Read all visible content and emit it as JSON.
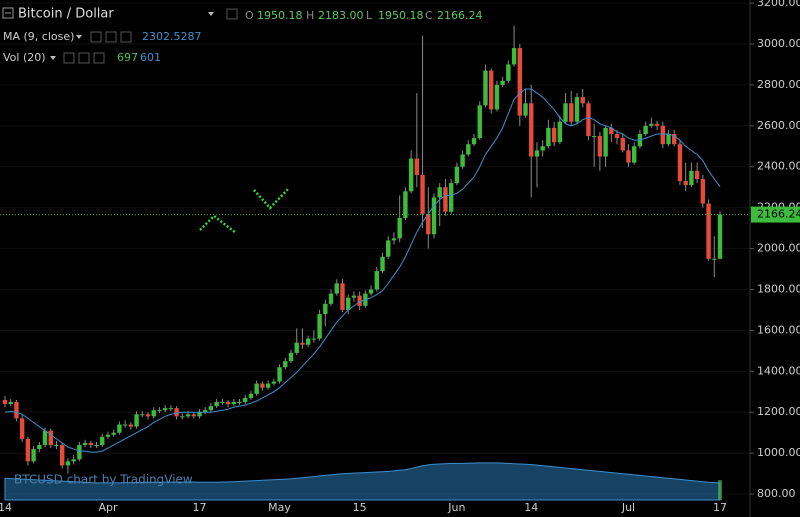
{
  "chart_data": {
    "type": "candlestick",
    "symbol": "Bitcoin / Dollar",
    "watermark": "BTCUSD chart by TradingView",
    "last_candle": {
      "keys": [
        "O",
        "H",
        "L",
        "C"
      ],
      "values": [
        1950.18,
        2183,
        1950.18,
        2166.24
      ],
      "value_labels": [
        "1950.18",
        "2183.00",
        "1950.18",
        "2166.24"
      ]
    },
    "up_color": "#3dbb3d",
    "down_color": "#e84a3a",
    "categories": [
      "14",
      null,
      null,
      null,
      null,
      null,
      null,
      null,
      null,
      null,
      null,
      null,
      null,
      null,
      null,
      null,
      null,
      null,
      "Apr",
      null,
      null,
      null,
      null,
      null,
      null,
      null,
      null,
      null,
      null,
      null,
      null,
      null,
      null,
      null,
      "17",
      null,
      null,
      null,
      null,
      null,
      null,
      null,
      null,
      null,
      null,
      null,
      null,
      null,
      "May",
      null,
      null,
      null,
      null,
      null,
      null,
      null,
      null,
      null,
      null,
      null,
      null,
      null,
      "15",
      null,
      null,
      null,
      null,
      null,
      null,
      null,
      null,
      null,
      null,
      null,
      null,
      null,
      null,
      null,
      null,
      "Jun",
      null,
      null,
      null,
      null,
      null,
      null,
      null,
      null,
      null,
      null,
      null,
      null,
      "14",
      null,
      null,
      null,
      null,
      null,
      null,
      null,
      null,
      null,
      null,
      null,
      null,
      null,
      null,
      null,
      null,
      "Jul",
      null,
      null,
      null,
      null,
      null,
      null,
      null,
      null,
      null,
      null,
      null,
      null,
      null,
      null,
      null,
      "17"
    ],
    "ohlc": [
      [
        1260,
        1280,
        1225,
        1240
      ],
      [
        1240,
        1265,
        1230,
        1250
      ],
      [
        1250,
        1260,
        1155,
        1170
      ],
      [
        1170,
        1185,
        1055,
        1070
      ],
      [
        1070,
        1080,
        940,
        960
      ],
      [
        960,
        1035,
        950,
        1020
      ],
      [
        1020,
        1055,
        1005,
        1040
      ],
      [
        1040,
        1125,
        1030,
        1110
      ],
      [
        1110,
        1120,
        1025,
        1040
      ],
      [
        1040,
        1060,
        1020,
        1040
      ],
      [
        1040,
        1050,
        925,
        940
      ],
      [
        940,
        975,
        900,
        960
      ],
      [
        960,
        990,
        945,
        970
      ],
      [
        970,
        1055,
        960,
        1040
      ],
      [
        1040,
        1065,
        1030,
        1050
      ],
      [
        1050,
        1060,
        1025,
        1040
      ],
      [
        1040,
        1055,
        1025,
        1040
      ],
      [
        1040,
        1095,
        1030,
        1080
      ],
      [
        1080,
        1105,
        1070,
        1090
      ],
      [
        1090,
        1115,
        1080,
        1100
      ],
      [
        1100,
        1155,
        1090,
        1140
      ],
      [
        1140,
        1160,
        1125,
        1140
      ],
      [
        1140,
        1150,
        1115,
        1130
      ],
      [
        1130,
        1205,
        1120,
        1190
      ],
      [
        1190,
        1205,
        1175,
        1190
      ],
      [
        1190,
        1200,
        1165,
        1180
      ],
      [
        1180,
        1225,
        1170,
        1210
      ],
      [
        1210,
        1225,
        1195,
        1210
      ],
      [
        1210,
        1235,
        1200,
        1220
      ],
      [
        1220,
        1235,
        1205,
        1220
      ],
      [
        1220,
        1230,
        1165,
        1180
      ],
      [
        1180,
        1195,
        1165,
        1180
      ],
      [
        1180,
        1205,
        1170,
        1190
      ],
      [
        1190,
        1200,
        1170,
        1180
      ],
      [
        1180,
        1215,
        1170,
        1200
      ],
      [
        1200,
        1225,
        1190,
        1210
      ],
      [
        1210,
        1245,
        1200,
        1230
      ],
      [
        1230,
        1265,
        1220,
        1250
      ],
      [
        1250,
        1265,
        1235,
        1250
      ],
      [
        1250,
        1260,
        1225,
        1240
      ],
      [
        1240,
        1265,
        1230,
        1250
      ],
      [
        1250,
        1265,
        1235,
        1250
      ],
      [
        1250,
        1285,
        1240,
        1270
      ],
      [
        1270,
        1305,
        1260,
        1290
      ],
      [
        1290,
        1355,
        1280,
        1340
      ],
      [
        1340,
        1350,
        1305,
        1320
      ],
      [
        1320,
        1355,
        1310,
        1340
      ],
      [
        1340,
        1365,
        1330,
        1350
      ],
      [
        1350,
        1435,
        1340,
        1420
      ],
      [
        1420,
        1465,
        1410,
        1450
      ],
      [
        1450,
        1505,
        1440,
        1490
      ],
      [
        1490,
        1610,
        1480,
        1540
      ],
      [
        1540,
        1610,
        1510,
        1530
      ],
      [
        1530,
        1575,
        1520,
        1560
      ],
      [
        1560,
        1600,
        1540,
        1560
      ],
      [
        1560,
        1700,
        1550,
        1680
      ],
      [
        1680,
        1750,
        1620,
        1730
      ],
      [
        1730,
        1800,
        1720,
        1780
      ],
      [
        1780,
        1850,
        1770,
        1830
      ],
      [
        1830,
        1850,
        1690,
        1700
      ],
      [
        1700,
        1775,
        1680,
        1760
      ],
      [
        1760,
        1790,
        1740,
        1770
      ],
      [
        1770,
        1790,
        1700,
        1720
      ],
      [
        1720,
        1795,
        1710,
        1780
      ],
      [
        1780,
        1820,
        1770,
        1800
      ],
      [
        1800,
        1910,
        1790,
        1890
      ],
      [
        1890,
        1980,
        1880,
        1960
      ],
      [
        1960,
        2060,
        1950,
        2040
      ],
      [
        2040,
        2080,
        2020,
        2050
      ],
      [
        2050,
        2260,
        2030,
        2150
      ],
      [
        2150,
        2300,
        2140,
        2280
      ],
      [
        2280,
        2480,
        2270,
        2440
      ],
      [
        2440,
        2760,
        2300,
        2360
      ],
      [
        2360,
        3040,
        2100,
        2170
      ],
      [
        2170,
        2300,
        2000,
        2070
      ],
      [
        2070,
        2270,
        2050,
        2250
      ],
      [
        2250,
        2320,
        2110,
        2300
      ],
      [
        2300,
        2340,
        2160,
        2180
      ],
      [
        2180,
        2340,
        2170,
        2320
      ],
      [
        2320,
        2420,
        2310,
        2400
      ],
      [
        2400,
        2480,
        2390,
        2460
      ],
      [
        2460,
        2530,
        2450,
        2510
      ],
      [
        2510,
        2560,
        2500,
        2540
      ],
      [
        2540,
        2720,
        2530,
        2700
      ],
      [
        2700,
        2900,
        2690,
        2870
      ],
      [
        2870,
        2880,
        2660,
        2680
      ],
      [
        2680,
        2820,
        2670,
        2800
      ],
      [
        2800,
        2840,
        2790,
        2820
      ],
      [
        2820,
        2920,
        2810,
        2900
      ],
      [
        2900,
        3090,
        2890,
        2980
      ],
      [
        2980,
        3000,
        2600,
        2650
      ],
      [
        2650,
        2780,
        2640,
        2710
      ],
      [
        2710,
        2800,
        2250,
        2450
      ],
      [
        2450,
        2520,
        2300,
        2480
      ],
      [
        2480,
        2530,
        2450,
        2500
      ],
      [
        2500,
        2630,
        2490,
        2590
      ],
      [
        2590,
        2620,
        2500,
        2520
      ],
      [
        2520,
        2650,
        2510,
        2620
      ],
      [
        2620,
        2760,
        2610,
        2710
      ],
      [
        2710,
        2770,
        2600,
        2620
      ],
      [
        2620,
        2760,
        2610,
        2740
      ],
      [
        2740,
        2780,
        2690,
        2710
      ],
      [
        2710,
        2720,
        2530,
        2550
      ],
      [
        2550,
        2610,
        2400,
        2550
      ],
      [
        2550,
        2570,
        2380,
        2450
      ],
      [
        2450,
        2600,
        2400,
        2590
      ],
      [
        2590,
        2610,
        2520,
        2560
      ],
      [
        2560,
        2580,
        2510,
        2540
      ],
      [
        2540,
        2560,
        2470,
        2480
      ],
      [
        2480,
        2510,
        2400,
        2420
      ],
      [
        2420,
        2520,
        2410,
        2500
      ],
      [
        2500,
        2580,
        2490,
        2560
      ],
      [
        2560,
        2620,
        2550,
        2600
      ],
      [
        2600,
        2640,
        2590,
        2610
      ],
      [
        2610,
        2625,
        2580,
        2600
      ],
      [
        2600,
        2620,
        2490,
        2510
      ],
      [
        2510,
        2580,
        2500,
        2560
      ],
      [
        2560,
        2580,
        2500,
        2510
      ],
      [
        2510,
        2530,
        2310,
        2330
      ],
      [
        2330,
        2420,
        2280,
        2310
      ],
      [
        2310,
        2420,
        2300,
        2380
      ],
      [
        2380,
        2420,
        2320,
        2340
      ],
      [
        2340,
        2360,
        2200,
        2220
      ],
      [
        2220,
        2240,
        1940,
        1950
      ],
      [
        1950,
        2060,
        1860,
        1950.18
      ],
      [
        1950.18,
        2183,
        1950.18,
        2166.24
      ]
    ],
    "ma": {
      "name": "MA (9, close)",
      "color": "#3d8fd0",
      "values": [
        1200,
        1205,
        1200,
        1190,
        1170,
        1150,
        1130,
        1110,
        1090,
        1070,
        1050,
        1030,
        1020,
        1010,
        1010,
        1005,
        1005,
        1010,
        1025,
        1040,
        1055,
        1070,
        1085,
        1100,
        1115,
        1130,
        1150,
        1165,
        1180,
        1190,
        1195,
        1200,
        1200,
        1200,
        1200,
        1200,
        1200,
        1205,
        1210,
        1215,
        1225,
        1230,
        1235,
        1245,
        1255,
        1270,
        1285,
        1300,
        1320,
        1345,
        1370,
        1395,
        1425,
        1455,
        1485,
        1520,
        1560,
        1600,
        1640,
        1670,
        1700,
        1720,
        1740,
        1750,
        1760,
        1775,
        1795,
        1830,
        1870,
        1910,
        1960,
        2020,
        2080,
        2130,
        2170,
        2210,
        2240,
        2260,
        2260,
        2270,
        2290,
        2320,
        2350,
        2400,
        2460,
        2500,
        2540,
        2590,
        2660,
        2730,
        2760,
        2780,
        2780,
        2760,
        2740,
        2710,
        2680,
        2640,
        2610,
        2600,
        2610,
        2630,
        2640,
        2630,
        2610,
        2600,
        2590,
        2570,
        2560,
        2540,
        2530,
        2530,
        2540,
        2550,
        2560,
        2560,
        2560,
        2550,
        2530,
        2500,
        2480,
        2460,
        2430,
        2380,
        2340,
        2302.5287
      ]
    },
    "volume": {
      "name": "Vol (20)",
      "last": 697,
      "color": "#1d5a85",
      "bar_color": "#2f6b2f",
      "last_color": "#4fbf4f",
      "ma_color": "#3d8fd0",
      "ylim": [
        0,
        3500
      ],
      "ma_values": [
        760,
        750,
        740,
        730,
        720,
        710,
        700,
        690,
        680,
        670,
        660,
        650,
        640,
        630,
        620,
        610,
        600,
        600,
        600,
        600,
        600,
        610,
        610,
        610,
        620,
        620,
        620,
        620,
        630,
        630,
        630,
        630,
        630,
        630,
        620,
        620,
        620,
        620,
        630,
        630,
        640,
        650,
        660,
        670,
        680,
        690,
        700,
        710,
        720,
        730,
        740,
        760,
        780,
        800,
        820,
        840,
        860,
        880,
        900,
        920,
        930,
        940,
        950,
        960,
        970,
        980,
        990,
        1000,
        1020,
        1040,
        1060,
        1100,
        1150,
        1200,
        1230,
        1250,
        1260,
        1270,
        1280,
        1280,
        1280,
        1290,
        1290,
        1300,
        1300,
        1300,
        1300,
        1290,
        1280,
        1270,
        1260,
        1250,
        1240,
        1220,
        1200,
        1180,
        1160,
        1140,
        1120,
        1100,
        1080,
        1060,
        1040,
        1020,
        1000,
        980,
        960,
        940,
        920,
        900,
        880,
        860,
        840,
        820,
        800,
        780,
        760,
        740,
        720,
        700,
        680,
        660,
        640,
        620,
        610,
        601
      ]
    },
    "ylim": [
      688,
      3215
    ],
    "yticks": [
      {
        "value": 800,
        "label": "800.00"
      },
      {
        "value": 1000,
        "label": "1000.00"
      },
      {
        "value": 1200,
        "label": "1200.00"
      },
      {
        "value": 1400,
        "label": "1400.00"
      },
      {
        "value": 1600,
        "label": "1600.00"
      },
      {
        "value": 1800,
        "label": "1800.00"
      },
      {
        "value": 2000,
        "label": "2000.00"
      },
      {
        "value": 2200,
        "label": "2200.00"
      },
      {
        "value": 2400,
        "label": "2400.00"
      },
      {
        "value": 2600,
        "label": "2600.00"
      },
      {
        "value": 2800,
        "label": "2800.00"
      },
      {
        "value": 3000,
        "label": "3000.00"
      },
      {
        "value": 3200,
        "label": "3200.00"
      }
    ],
    "grid": true,
    "price_line_color": "#3dbb3d"
  }
}
